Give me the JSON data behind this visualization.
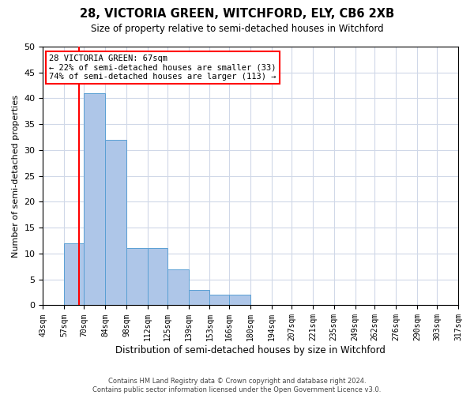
{
  "title": "28, VICTORIA GREEN, WITCHFORD, ELY, CB6 2XB",
  "subtitle": "Size of property relative to semi-detached houses in Witchford",
  "xlabel": "Distribution of semi-detached houses by size in Witchford",
  "ylabel": "Number of semi-detached properties",
  "footer_line1": "Contains HM Land Registry data © Crown copyright and database right 2024.",
  "footer_line2": "Contains public sector information licensed under the Open Government Licence v3.0.",
  "bins": [
    43,
    57,
    70,
    84,
    98,
    112,
    125,
    139,
    153,
    166,
    180,
    194,
    207,
    221,
    235,
    249,
    262,
    276,
    290,
    303,
    317
  ],
  "counts": [
    0,
    12,
    41,
    32,
    11,
    11,
    7,
    3,
    2,
    2,
    0,
    0,
    0,
    0,
    0,
    0,
    0,
    0,
    0,
    0
  ],
  "bin_labels": [
    "43sqm",
    "57sqm",
    "70sqm",
    "84sqm",
    "98sqm",
    "112sqm",
    "125sqm",
    "139sqm",
    "153sqm",
    "166sqm",
    "180sqm",
    "194sqm",
    "207sqm",
    "221sqm",
    "235sqm",
    "249sqm",
    "262sqm",
    "276sqm",
    "290sqm",
    "303sqm",
    "317sqm"
  ],
  "bar_color": "#aec6e8",
  "bar_edge_color": "#5a9fd4",
  "property_line_x": 67,
  "annotation_text_line1": "28 VICTORIA GREEN: 67sqm",
  "annotation_text_line2": "← 22% of semi-detached houses are smaller (33)",
  "annotation_text_line3": "74% of semi-detached houses are larger (113) →",
  "red_line_color": "#ff0000",
  "ylim": [
    0,
    50
  ],
  "background_color": "#ffffff",
  "grid_color": "#d0d8e8"
}
